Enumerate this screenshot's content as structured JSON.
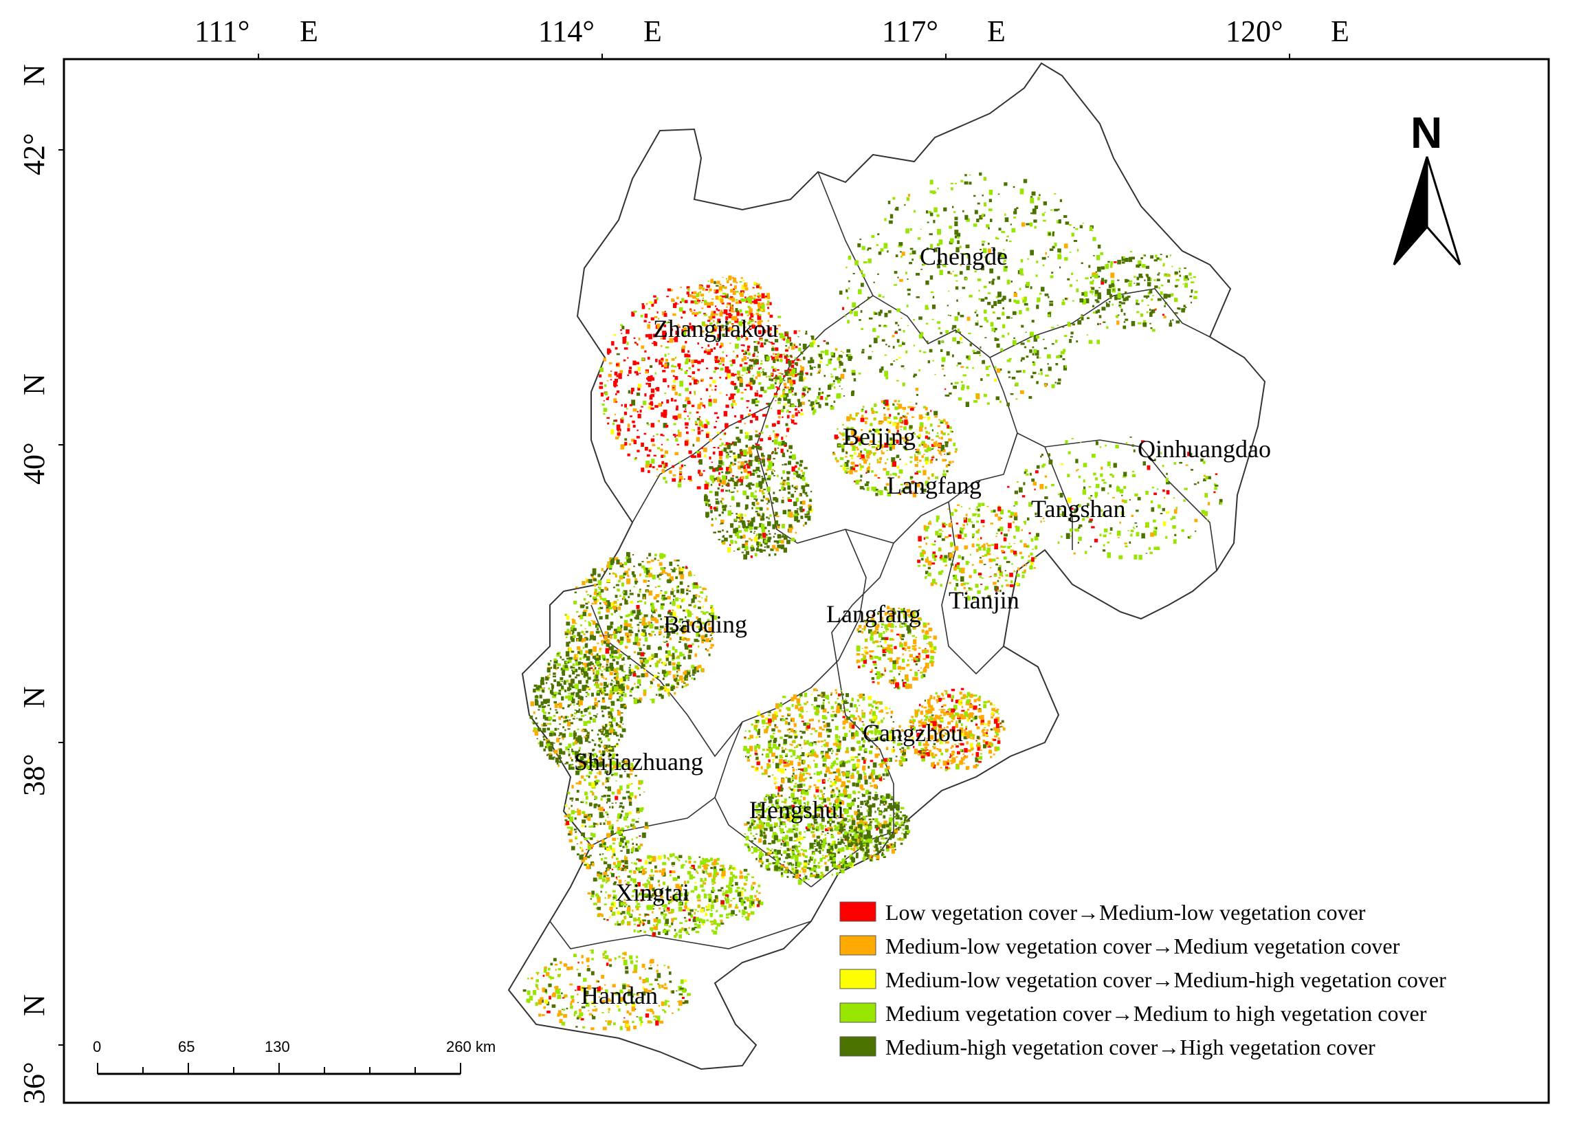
{
  "map": {
    "graticule_top": [
      {
        "deg": "111°",
        "dir": "E"
      },
      {
        "deg": "114°",
        "dir": "E"
      },
      {
        "deg": "117°",
        "dir": "E"
      },
      {
        "deg": "120°",
        "dir": "E"
      }
    ],
    "graticule_left": [
      {
        "deg": "42°",
        "dir": "N"
      },
      {
        "deg": "40°",
        "dir": "N"
      },
      {
        "deg": "38°",
        "dir": "N"
      },
      {
        "deg": "36°",
        "dir": "N"
      }
    ],
    "north_arrow": {
      "letter": "N",
      "icon": "north-arrow-icon"
    },
    "cities": [
      "Chengde",
      "Zhangjiakou",
      "Beijing",
      "Langfang",
      "Qinhuangdao",
      "Tangshan",
      "Tianjin",
      "Langfang",
      "Baoding",
      "Cangzhou",
      "Shijiazhuang",
      "Hengshui",
      "Xingtai",
      "Handan"
    ],
    "scale_bar": {
      "ticks": [
        "0",
        "65",
        "130",
        "260 km"
      ]
    },
    "legend": [
      {
        "label": "Low vegetation cover→Medium-low vegetation cover",
        "color": "#ff0000"
      },
      {
        "label": "Medium-low vegetation cover→Medium vegetation cover",
        "color": "#ffaa00"
      },
      {
        "label": "Medium-low vegetation cover→Medium-high vegetation cover",
        "color": "#ffff00"
      },
      {
        "label": "Medium vegetation cover→Medium to high vegetation cover",
        "color": "#98e600"
      },
      {
        "label": "Medium-high vegetation cover→High vegetation cover",
        "color": "#4c7300"
      }
    ]
  }
}
